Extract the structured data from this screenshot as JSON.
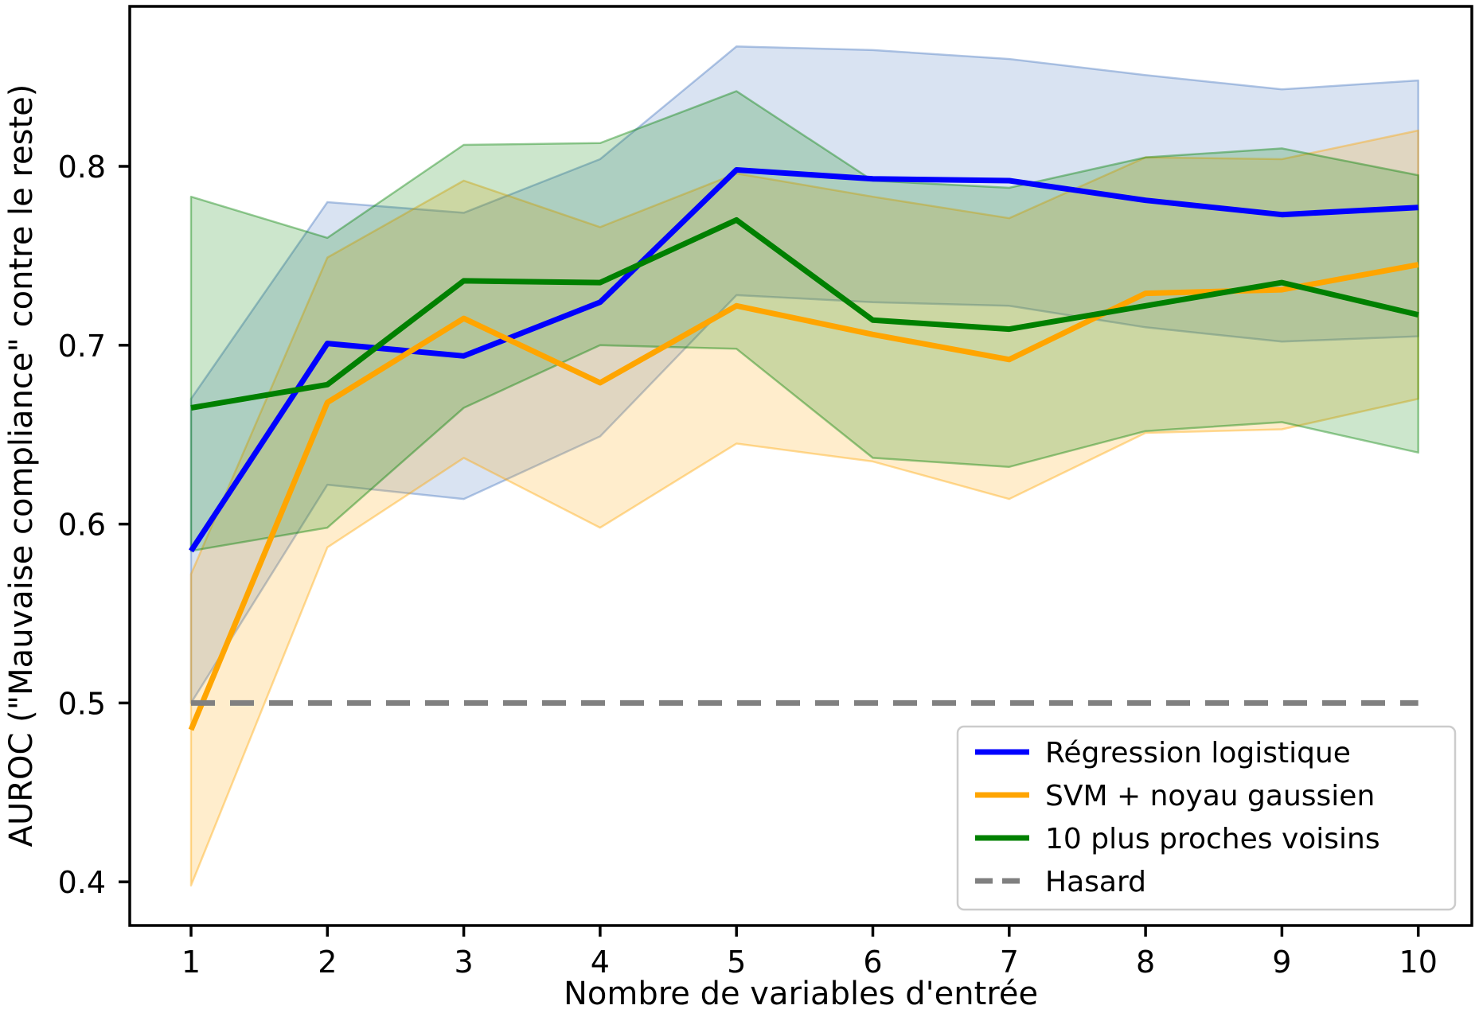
{
  "chart_data": {
    "type": "line",
    "title": "",
    "xlabel": "Nombre de variables d'entrée",
    "ylabel": "AUROC (\"Mauvaise compliance\" contre le reste)",
    "x": [
      1,
      2,
      3,
      4,
      5,
      6,
      7,
      8,
      9,
      10
    ],
    "xlim": [
      0.55,
      10.45
    ],
    "ylim": [
      0.376,
      0.889
    ],
    "xtick_labels": [
      "1",
      "2",
      "3",
      "4",
      "5",
      "6",
      "7",
      "8",
      "9",
      "10"
    ],
    "ytick_values": [
      0.4,
      0.5,
      0.6,
      0.7,
      0.8
    ],
    "ytick_labels": [
      "0.4",
      "0.5",
      "0.6",
      "0.7",
      "0.8"
    ],
    "grid": false,
    "band_fill_opacity": 0.2,
    "band_edge_opacity": 0.4,
    "legend": {
      "position": "lower right",
      "border_color": "#cccccc",
      "background": "#ffffff"
    },
    "series": [
      {
        "name": "Régression logistique",
        "color": "#0000ff",
        "band_color": "#4273bd",
        "line_style": "solid",
        "values": [
          0.585,
          0.701,
          0.694,
          0.724,
          0.798,
          0.793,
          0.792,
          0.781,
          0.773,
          0.777
        ],
        "band_lower": [
          0.5,
          0.622,
          0.614,
          0.649,
          0.728,
          0.724,
          0.722,
          0.71,
          0.702,
          0.705
        ],
        "band_upper": [
          0.67,
          0.78,
          0.774,
          0.804,
          0.867,
          0.865,
          0.86,
          0.851,
          0.843,
          0.848
        ]
      },
      {
        "name": "SVM + noyau gaussien",
        "color": "#ffa500",
        "band_color": "#ffa500",
        "line_style": "solid",
        "values": [
          0.485,
          0.668,
          0.715,
          0.679,
          0.722,
          0.706,
          0.692,
          0.729,
          0.731,
          0.745
        ],
        "band_lower": [
          0.398,
          0.587,
          0.637,
          0.598,
          0.645,
          0.635,
          0.614,
          0.651,
          0.653,
          0.67
        ],
        "band_upper": [
          0.572,
          0.749,
          0.792,
          0.766,
          0.796,
          0.783,
          0.771,
          0.805,
          0.804,
          0.82
        ]
      },
      {
        "name": "10 plus proches voisins",
        "color": "#008000",
        "band_color": "#008000",
        "line_style": "solid",
        "values": [
          0.665,
          0.678,
          0.736,
          0.735,
          0.77,
          0.714,
          0.709,
          0.722,
          0.735,
          0.717
        ],
        "band_lower": [
          0.585,
          0.598,
          0.665,
          0.7,
          0.698,
          0.637,
          0.632,
          0.652,
          0.657,
          0.64
        ],
        "band_upper": [
          0.783,
          0.76,
          0.812,
          0.813,
          0.842,
          0.792,
          0.788,
          0.805,
          0.81,
          0.795
        ]
      },
      {
        "name": "Hasard",
        "color": "#808080",
        "line_style": "dashed",
        "values": [
          0.5,
          0.5,
          0.5,
          0.5,
          0.5,
          0.5,
          0.5,
          0.5,
          0.5,
          0.5
        ]
      }
    ]
  }
}
